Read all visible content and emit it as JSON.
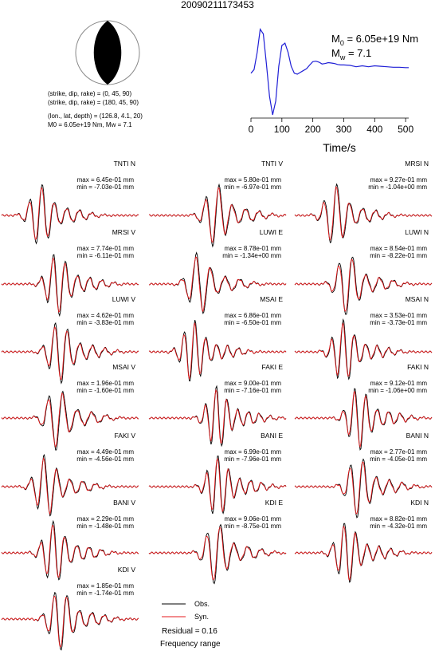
{
  "title": "20090211173453",
  "beachball": {
    "mechanism1": "(strike, dip, rake) = (0, 45, 90)",
    "mechanism2": "(strike, dip, rake) = (180, 45, 90)",
    "location": "(lon., lat, depth) = (126.8, 4.1, 20)",
    "moment": "M0 = 6.05e+19 Nm, Mw = 7.1"
  },
  "stf": {
    "m0_label": "M",
    "m0_sub": "0",
    "m0_value": " = 6.05e+19 Nm",
    "mw_label": "M",
    "mw_sub": "w",
    "mw_value": " = 7.1",
    "xlabel": "Time/s",
    "xticks": [
      "0",
      "100",
      "200",
      "300",
      "400",
      "500"
    ]
  },
  "traces": [
    {
      "name": "TNTI N",
      "max": "max = 6.45e-01 mm",
      "min": "min = -7.03e-01 mm"
    },
    {
      "name": "TNTI V",
      "max": "max = 5.80e-01 mm",
      "min": "min = -6.97e-01 mm"
    },
    {
      "name": "MRSI N",
      "max": "max = 9.27e-01 mm",
      "min": "min = -1.04e+00 mm"
    },
    {
      "name": "MRSI V",
      "max": "max = 7.74e-01 mm",
      "min": "min = -6.11e-01 mm"
    },
    {
      "name": "LUWI E",
      "max": "max = 8.78e-01 mm",
      "min": "min = -1.34e+00 mm"
    },
    {
      "name": "LUWI N",
      "max": "max = 8.54e-01 mm",
      "min": "min = -8.22e-01 mm"
    },
    {
      "name": "LUWI V",
      "max": "max = 4.62e-01 mm",
      "min": "min = -3.83e-01 mm"
    },
    {
      "name": "MSAI E",
      "max": "max = 6.86e-01 mm",
      "min": "min = -6.50e-01 mm"
    },
    {
      "name": "MSAI N",
      "max": "max = 3.53e-01 mm",
      "min": "min = -3.73e-01 mm"
    },
    {
      "name": "MSAI V",
      "max": "max = 1.96e-01 mm",
      "min": "min = -1.60e-01 mm"
    },
    {
      "name": "FAKI E",
      "max": "max = 9.00e-01 mm",
      "min": "min = -7.16e-01 mm"
    },
    {
      "name": "FAKI N",
      "max": "max = 9.12e-01 mm",
      "min": "min = -1.06e+00 mm"
    },
    {
      "name": "FAKI V",
      "max": "max = 4.49e-01 mm",
      "min": "min = -4.56e-01 mm"
    },
    {
      "name": "BANI E",
      "max": "max = 6.99e-01 mm",
      "min": "min = -7.96e-01 mm"
    },
    {
      "name": "BANI N",
      "max": "max = 2.77e-01 mm",
      "min": "min = -4.05e-01 mm"
    },
    {
      "name": "BANI V",
      "max": "max = 2.29e-01 mm",
      "min": "min = -1.48e-01 mm"
    },
    {
      "name": "KDI E",
      "max": "max = 9.06e-01 mm",
      "min": "min = -8.75e-01 mm"
    },
    {
      "name": "KDI N",
      "max": "max = 8.82e-01 mm",
      "min": "min = -4.32e-01 mm"
    },
    {
      "name": "KDI V",
      "max": "max = 1.85e-01 mm",
      "min": "min = -1.74e-01 mm"
    }
  ],
  "legend": {
    "obs_label": "Obs.",
    "syn_label": "Syn.",
    "obs_color": "#000000",
    "syn_color": "#e41a1c",
    "residual": "Residual = 0.16",
    "freq": "Frequency range"
  },
  "colors": {
    "stf_line": "#1f1fd6"
  },
  "chart_data": {
    "type": "line",
    "xlabel": "Time/s",
    "xlim": [
      0,
      510
    ],
    "xticks": [
      0,
      100,
      200,
      300,
      400,
      500
    ],
    "series": [
      {
        "x": [
          0,
          10,
          20,
          30,
          40,
          50,
          60,
          70,
          80,
          90,
          100,
          110,
          120,
          130,
          140,
          150,
          160,
          170,
          180,
          190,
          200,
          210,
          220,
          230,
          240,
          250,
          260,
          270,
          280,
          290,
          300,
          320,
          340,
          360,
          380,
          400,
          420,
          440,
          460,
          480,
          500,
          510
        ],
        "y": [
          -0.1,
          -0.02,
          0.35,
          0.85,
          0.75,
          0.1,
          -0.6,
          -1.0,
          -0.7,
          0.05,
          0.5,
          0.55,
          0.35,
          0.05,
          -0.1,
          -0.12,
          -0.08,
          -0.04,
          0.0,
          0.08,
          0.15,
          0.16,
          0.14,
          0.1,
          0.11,
          0.13,
          0.12,
          0.11,
          0.09,
          0.08,
          0.08,
          0.07,
          0.04,
          0.06,
          0.04,
          0.06,
          0.05,
          0.04,
          0.03,
          0.03,
          0.02,
          0.02
        ]
      }
    ]
  }
}
